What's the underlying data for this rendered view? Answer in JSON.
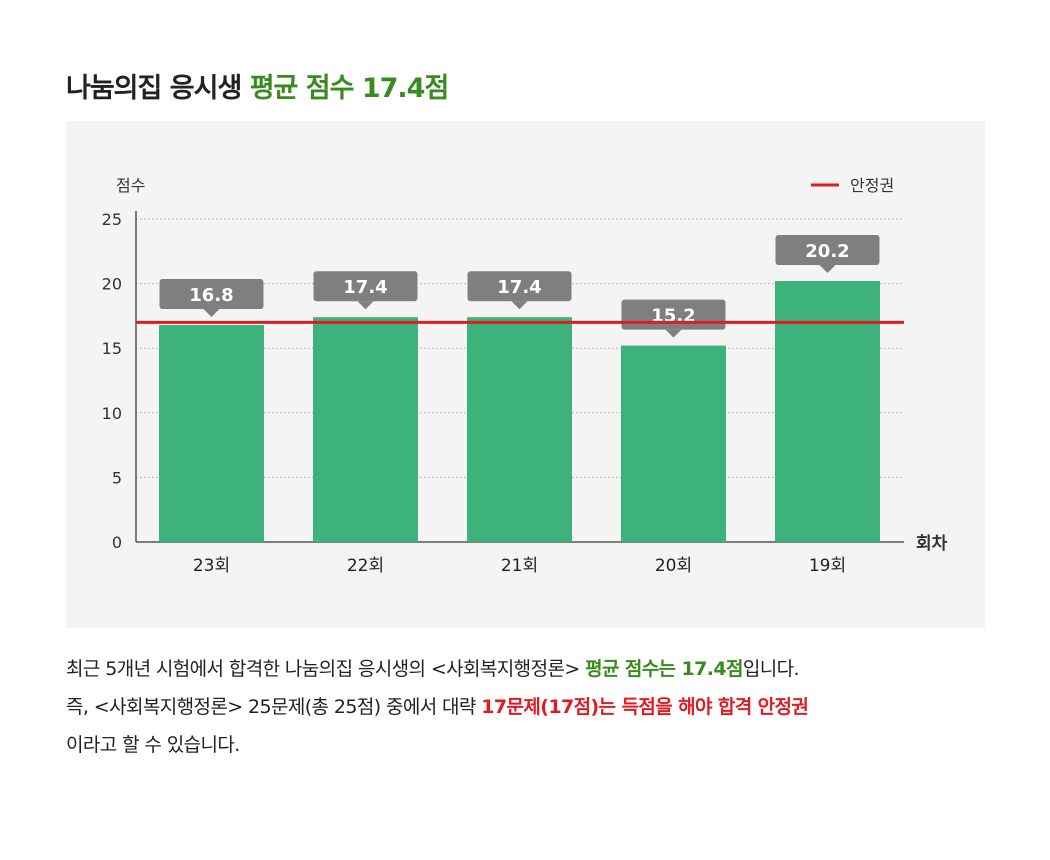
{
  "title": {
    "prefix": "나눔의집 응시생 ",
    "highlight": "평균 점수 17.4점"
  },
  "colors": {
    "bar": "#3db27a",
    "threshold_line": "#e01b23",
    "label_box": "#7f7f7f",
    "green_text": "#3a8a1f",
    "red_text": "#e01b23"
  },
  "chart_data": {
    "type": "bar",
    "categories": [
      "23회",
      "22회",
      "21회",
      "20회",
      "19회"
    ],
    "values": [
      16.8,
      17.4,
      17.4,
      15.2,
      20.2
    ],
    "data_labels": [
      "16.8",
      "17.4",
      "17.4",
      "15.2",
      "20.2"
    ],
    "ylabel": "점수",
    "xlabel": "회차",
    "ylim": [
      0,
      25
    ],
    "yticks": [
      0,
      5,
      10,
      15,
      20,
      25
    ],
    "grid": "dotted horizontal",
    "threshold": {
      "value": 17,
      "legend_label": "안정권"
    },
    "legend_placement": "top-right"
  },
  "description": {
    "line1": {
      "text": "최근 5개년 시험에서 합격한 나눔의집 응시생의 <사회복지행정론> ",
      "highlight": "평균 점수는 17.4점",
      "suffix": "입니다."
    },
    "line2": {
      "text": "즉, <사회복지행정론> 25문제(총 25점) 중에서 대략 ",
      "highlight": "17문제(17점)는 득점을 해야 합격 안정권"
    },
    "line3": {
      "text": "이라고 할 수 있습니다."
    }
  }
}
